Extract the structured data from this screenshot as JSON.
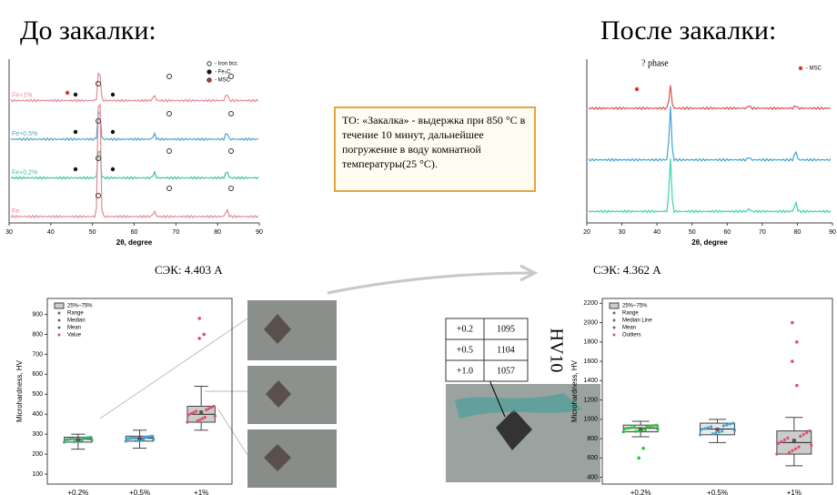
{
  "titles": {
    "before": "До закалки:",
    "after": "После закалки:"
  },
  "note": "ТО: «Закалка» - выдержка при 850 °С в течение 10 минут, дальнейшее погружение в воду комнатной температуры(25 °С).",
  "sek_before": "СЭК: 4.403 А",
  "sek_after": "СЭК: 4.362 А",
  "xrd_before": {
    "xlabel": "2θ, degree",
    "xlim": [
      30,
      90
    ],
    "xticks": [
      30,
      40,
      50,
      60,
      70,
      80,
      90
    ],
    "series": [
      "Fe+1%",
      "Fe+0,5%",
      "Fe+0,2%",
      "Fe"
    ],
    "colors": [
      "#e58a97",
      "#4aa6c8",
      "#3cc4a0",
      "#e58a97"
    ],
    "legend": [
      "- Iron bcc",
      "- Fe₃C",
      "- MSC"
    ]
  },
  "xrd_after": {
    "xlabel": "2θ, degree",
    "xlim": [
      20,
      90
    ],
    "xticks": [
      20,
      30,
      40,
      50,
      60,
      70,
      80,
      90
    ],
    "annotation": "? phase",
    "legend": [
      "- MSC"
    ],
    "colors": [
      "#d9534f",
      "#3fa3d6",
      "#39d3b0"
    ]
  },
  "hardness_before": {
    "ylabel": "Microhardness, HV",
    "ylim": [
      50,
      980
    ],
    "yticks": [
      100,
      200,
      300,
      400,
      500,
      600,
      700,
      800,
      900
    ],
    "categories": [
      "+0.2%",
      "+0.5%",
      "+1%"
    ],
    "colors": [
      "#3cb371",
      "#3fa3d6",
      "#e0506a"
    ],
    "boxes": [
      {
        "min": 225,
        "q1": 260,
        "median": 275,
        "q3": 285,
        "max": 300,
        "mean": 272
      },
      {
        "min": 230,
        "q1": 265,
        "median": 280,
        "q3": 290,
        "max": 320,
        "mean": 278
      },
      {
        "min": 320,
        "q1": 360,
        "median": 400,
        "q3": 440,
        "max": 540,
        "mean": 410
      }
    ],
    "outliers": [
      [],
      [],
      [
        880,
        800,
        780
      ]
    ],
    "legend": [
      "25%~75%",
      "Range",
      "Median",
      "Mean",
      "Value"
    ]
  },
  "hv10": {
    "label": "HV10",
    "rows": [
      [
        "+0.2",
        1095
      ],
      [
        "+0.5",
        1104
      ],
      [
        "+1.0",
        1057
      ]
    ]
  },
  "hardness_after": {
    "ylabel": "Microhardness, HV",
    "ylim": [
      330,
      2250
    ],
    "yticks": [
      400,
      600,
      800,
      1000,
      1200,
      1400,
      1600,
      1800,
      2000,
      2200
    ],
    "categories": [
      "+0.2%",
      "+0.5%",
      "+1%"
    ],
    "colors": [
      "#22cc33",
      "#3fa3d6",
      "#e0506a"
    ],
    "boxes": [
      {
        "min": 820,
        "q1": 870,
        "median": 910,
        "q3": 940,
        "max": 980,
        "mean": 900
      },
      {
        "min": 760,
        "q1": 840,
        "median": 900,
        "q3": 960,
        "max": 1000,
        "mean": 895
      },
      {
        "min": 520,
        "q1": 640,
        "median": 760,
        "q3": 880,
        "max": 1020,
        "mean": 780
      }
    ],
    "outliers": [
      [
        600,
        700
      ],
      [],
      [
        2000,
        1800,
        1600,
        1350
      ]
    ],
    "legend": [
      "25%~75%",
      "Range",
      "Median Line",
      "Mean",
      "Outliers"
    ]
  }
}
